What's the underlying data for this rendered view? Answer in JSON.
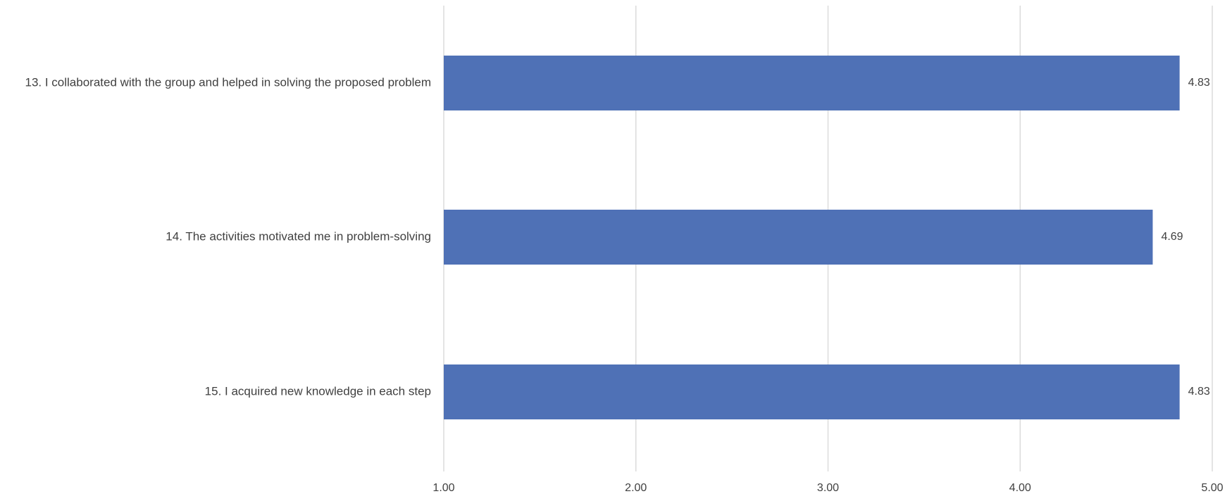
{
  "chart_data": {
    "type": "bar",
    "orientation": "horizontal",
    "categories": [
      "13. I collaborated with the group and helped in solving the proposed problem",
      "14. The activities motivated me in problem-solving",
      "15. I acquired new knowledge in each step"
    ],
    "values": [
      4.83,
      4.69,
      4.83
    ],
    "data_labels": [
      "4.83",
      "4.69",
      "4.83"
    ],
    "xlim": [
      1,
      5
    ],
    "x_ticks": [
      1,
      2,
      3,
      4,
      5
    ],
    "x_tick_labels": [
      "1.00",
      "2.00",
      "3.00",
      "4.00",
      "5.00"
    ],
    "title": "",
    "xlabel": "",
    "ylabel": "",
    "grid": "vertical",
    "legend": "none",
    "colors": {
      "bar": "#4f71b6",
      "grid": "#d9d9d9",
      "text": "#404040"
    }
  }
}
